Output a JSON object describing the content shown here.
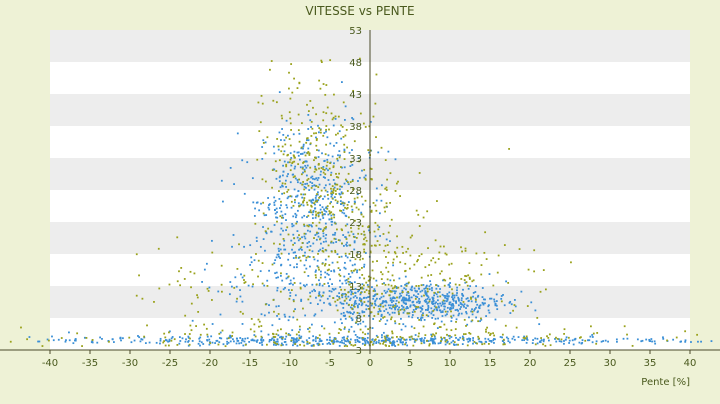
{
  "chart_data": {
    "type": "scatter",
    "title": "VITESSE vs PENTE",
    "xlabel": "Pente [%]",
    "ylabel": "",
    "xlim": [
      -40,
      40
    ],
    "ylim": [
      3,
      53
    ],
    "x_ticks": [
      -40,
      -35,
      -30,
      -25,
      -20,
      -15,
      -10,
      -5,
      0,
      5,
      10,
      15,
      20,
      25,
      30,
      35,
      40
    ],
    "y_ticks": [
      3,
      8,
      13,
      18,
      23,
      28,
      33,
      38,
      43,
      48,
      53
    ],
    "grid": "horizontal-bands",
    "legend": "none",
    "colors": {
      "background": "#eef2d6",
      "plot_band_light": "#ffffff",
      "plot_band_dark": "#ededed",
      "series_a": "#3a8fd6",
      "series_b": "#9aa21c",
      "text": "#4a5a1e",
      "axis": "#4a4a2a"
    },
    "series": [
      {
        "color": "#3a8fd6",
        "clusters": [
          {
            "cx": -7,
            "cy": 27,
            "sx": 3.5,
            "sy": 6,
            "n": 420
          },
          {
            "cx": -10,
            "cy": 14,
            "sx": 5,
            "sy": 7,
            "n": 250
          },
          {
            "cx": 7,
            "cy": 10.5,
            "sx": 5,
            "sy": 1.6,
            "n": 500
          },
          {
            "cx": 0,
            "cy": 4.5,
            "sx": 19,
            "sy": 0.35,
            "n": 520
          },
          {
            "cx": -2,
            "cy": 11,
            "sx": 1.5,
            "sy": 2.5,
            "n": 80
          }
        ]
      },
      {
        "color": "#9aa21c",
        "clusters": [
          {
            "cx": -6,
            "cy": 30,
            "sx": 3.5,
            "sy": 8,
            "n": 380
          },
          {
            "cx": 4,
            "cy": 13,
            "sx": 7,
            "sy": 5,
            "n": 300
          },
          {
            "cx": 0,
            "cy": 5,
            "sx": 21,
            "sy": 0.9,
            "n": 180
          },
          {
            "cx": -18,
            "cy": 12,
            "sx": 7,
            "sy": 4,
            "n": 80
          },
          {
            "cx": 1,
            "cy": 22,
            "sx": 3,
            "sy": 7,
            "n": 60
          }
        ]
      }
    ]
  }
}
